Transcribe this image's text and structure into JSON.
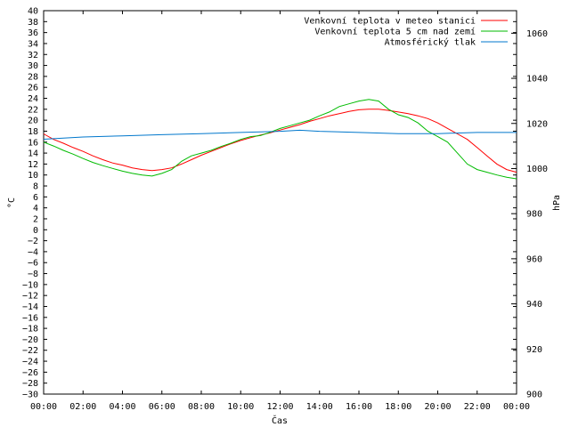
{
  "chart_data": {
    "type": "line",
    "xlabel": "Čas",
    "ylabel": "°C",
    "y2label": "hPa",
    "x_ticks": [
      "00:00",
      "02:00",
      "04:00",
      "06:00",
      "08:00",
      "10:00",
      "12:00",
      "14:00",
      "16:00",
      "18:00",
      "20:00",
      "22:00",
      "00:00"
    ],
    "xlim_hours": [
      0,
      24
    ],
    "ylim": [
      -30,
      40
    ],
    "y_ticks": [
      40,
      38,
      36,
      34,
      32,
      30,
      28,
      26,
      24,
      22,
      20,
      18,
      16,
      14,
      12,
      10,
      8,
      6,
      4,
      2,
      0,
      -2,
      -4,
      -6,
      -8,
      -10,
      -12,
      -14,
      -16,
      -18,
      -20,
      -22,
      -24,
      -26,
      -28,
      -30
    ],
    "y2lim": [
      900,
      1070
    ],
    "y2_ticks": [
      1060,
      1040,
      1020,
      1000,
      980,
      960,
      940,
      920,
      900
    ],
    "grid": false,
    "legend_position": "top-right",
    "series": [
      {
        "name": "Venkovní teplota v meteo stanici",
        "axis": "left",
        "color": "#ff0000",
        "x": [
          0,
          0.5,
          1,
          1.5,
          2,
          2.5,
          3,
          3.5,
          4,
          4.5,
          5,
          5.5,
          6,
          6.5,
          7,
          7.5,
          8,
          8.5,
          9,
          9.5,
          10,
          10.5,
          11,
          11.5,
          12,
          12.5,
          13,
          13.5,
          14,
          14.5,
          15,
          15.5,
          16,
          16.5,
          17,
          17.5,
          18,
          18.5,
          19,
          19.5,
          20,
          20.5,
          21,
          21.5,
          22,
          22.5,
          23,
          23.5,
          24
        ],
        "y": [
          17.5,
          16.5,
          15.8,
          15,
          14.3,
          13.5,
          12.8,
          12.2,
          11.8,
          11.3,
          11,
          10.8,
          11,
          11.3,
          12,
          12.8,
          13.6,
          14.3,
          15,
          15.7,
          16.3,
          16.8,
          17.3,
          17.7,
          18.2,
          18.7,
          19.2,
          19.8,
          20.3,
          20.8,
          21.2,
          21.6,
          21.9,
          22,
          22,
          21.8,
          21.5,
          21.2,
          20.8,
          20.3,
          19.5,
          18.5,
          17.5,
          16.5,
          15,
          13.5,
          12,
          11,
          10.5
        ]
      },
      {
        "name": "Venkovní teplota 5 cm nad zemí",
        "axis": "left",
        "color": "#00bb00",
        "x": [
          0,
          0.5,
          1,
          1.5,
          2,
          2.5,
          3,
          3.5,
          4,
          4.5,
          5,
          5.5,
          6,
          6.5,
          7,
          7.5,
          8,
          8.5,
          9,
          9.5,
          10,
          10.5,
          11,
          11.5,
          12,
          12.5,
          13,
          13.5,
          14,
          14.5,
          15,
          15.5,
          16,
          16.5,
          17,
          17.5,
          18,
          18.5,
          19,
          19.5,
          20,
          20.5,
          21,
          21.5,
          22,
          22.5,
          23,
          23.5,
          24
        ],
        "y": [
          16,
          15.3,
          14.5,
          13.8,
          13,
          12.3,
          11.7,
          11.2,
          10.7,
          10.3,
          10,
          9.8,
          10.3,
          11,
          12.5,
          13.5,
          14,
          14.5,
          15.2,
          15.8,
          16.5,
          17,
          17.2,
          17.8,
          18.5,
          19,
          19.5,
          20,
          20.8,
          21.5,
          22.5,
          23,
          23.5,
          23.8,
          23.5,
          22,
          21,
          20.5,
          19.5,
          18,
          17,
          16,
          14,
          12,
          11,
          10.5,
          10,
          9.6,
          9.3
        ]
      },
      {
        "name": "Atmosférický tlak",
        "axis": "right",
        "color": "#0077cc",
        "x": [
          0,
          2,
          4,
          6,
          8,
          10,
          12,
          13,
          14,
          16,
          18,
          20,
          22,
          24
        ],
        "y": [
          1013,
          1014,
          1014.5,
          1015,
          1015.5,
          1016,
          1016.5,
          1017,
          1016.5,
          1016,
          1015.5,
          1015.5,
          1016,
          1016
        ]
      }
    ]
  }
}
